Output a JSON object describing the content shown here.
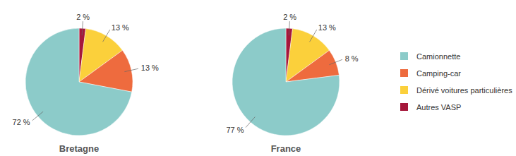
{
  "chart_data": {
    "type": "pie",
    "categories": [
      "Camionnette",
      "Camping-car",
      "Dérivé voitures particulières",
      "Autres VASP"
    ],
    "colors": [
      "#8ccbc9",
      "#ee6b3e",
      "#fbd03b",
      "#a5173b"
    ],
    "series": [
      {
        "name": "Bretagne",
        "values": [
          72,
          13,
          13,
          2
        ],
        "value_labels": [
          "72 %",
          "13 %",
          "13 %",
          "2 %"
        ]
      },
      {
        "name": "France",
        "values": [
          77,
          8,
          13,
          2
        ],
        "value_labels": [
          "77 %",
          "8 %",
          "13 %",
          "2 %"
        ]
      }
    ],
    "data_labels": true,
    "legend": "right"
  }
}
